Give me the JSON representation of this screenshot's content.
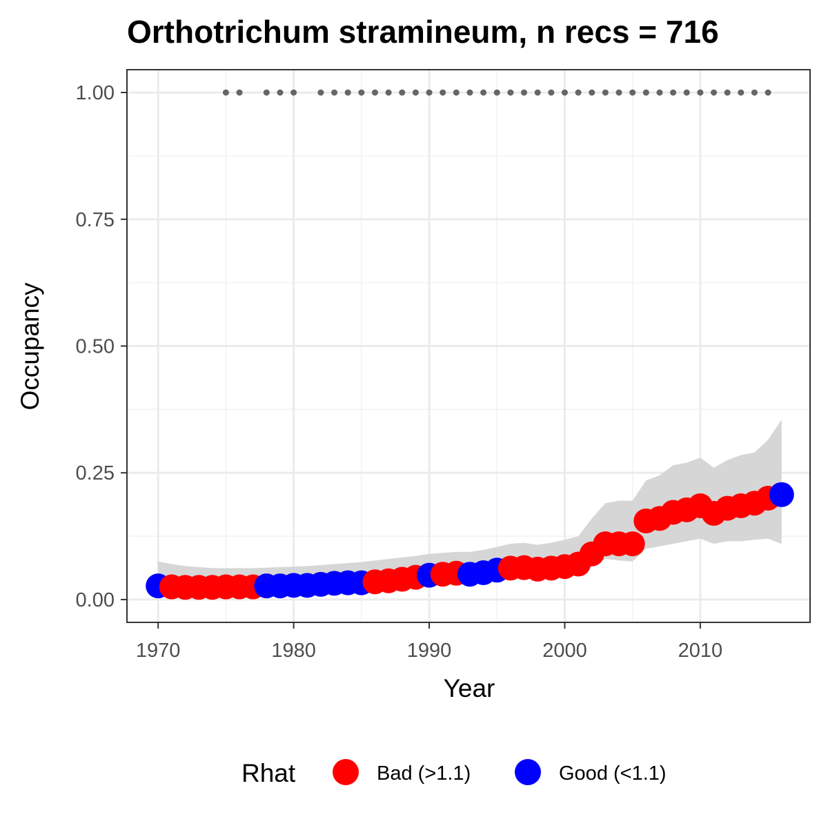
{
  "chart_data": {
    "type": "scatter",
    "title": "Orthotrichum stramineum, n recs = 716",
    "xlabel": "Year",
    "ylabel": "Occupancy",
    "xlim": [
      1967.7,
      2018.1
    ],
    "ylim": [
      -0.045,
      1.045
    ],
    "x_ticks": [
      1970,
      1980,
      1990,
      2000,
      2010
    ],
    "y_ticks": [
      0.0,
      0.25,
      0.5,
      0.75,
      1.0
    ],
    "x_tick_labels": [
      "1970",
      "1980",
      "1990",
      "2000",
      "2010"
    ],
    "y_tick_labels": [
      "0.00",
      "0.25",
      "0.50",
      "0.75",
      "1.00"
    ],
    "grid": true,
    "legend": {
      "title": "Rhat",
      "position": "bottom",
      "entries": [
        {
          "label": "Bad (>1.1)",
          "color": "#ff0000"
        },
        {
          "label": "Good (<1.1)",
          "color": "#0000ff"
        }
      ]
    },
    "colors": {
      "Bad": "#ff0000",
      "Good": "#0000ff",
      "ribbon": "#d6d6d6",
      "record_dots": "#666666"
    },
    "series": [
      {
        "x": [
          1970,
          1971,
          1972,
          1973,
          1974,
          1975,
          1976,
          1977,
          1978,
          1979,
          1980,
          1981,
          1982,
          1983,
          1984,
          1985,
          1986,
          1987,
          1988,
          1989,
          1990,
          1991,
          1992,
          1993,
          1994,
          1995,
          1996,
          1997,
          1998,
          1999,
          2000,
          2001,
          2002,
          2003,
          2004,
          2005,
          2006,
          2007,
          2008,
          2009,
          2010,
          2011,
          2012,
          2013,
          2014,
          2015,
          2016
        ],
        "y": [
          0.027,
          0.025,
          0.024,
          0.024,
          0.024,
          0.025,
          0.025,
          0.025,
          0.027,
          0.027,
          0.028,
          0.028,
          0.03,
          0.032,
          0.033,
          0.033,
          0.035,
          0.037,
          0.04,
          0.044,
          0.048,
          0.05,
          0.052,
          0.05,
          0.053,
          0.058,
          0.062,
          0.063,
          0.06,
          0.062,
          0.065,
          0.07,
          0.09,
          0.11,
          0.11,
          0.11,
          0.155,
          0.16,
          0.172,
          0.177,
          0.185,
          0.17,
          0.18,
          0.185,
          0.19,
          0.2,
          0.207
        ],
        "lower": [
          0.01,
          0.012,
          0.013,
          0.013,
          0.014,
          0.014,
          0.015,
          0.015,
          0.016,
          0.017,
          0.018,
          0.019,
          0.02,
          0.021,
          0.022,
          0.023,
          0.025,
          0.027,
          0.029,
          0.031,
          0.034,
          0.036,
          0.037,
          0.037,
          0.04,
          0.044,
          0.047,
          0.048,
          0.046,
          0.047,
          0.049,
          0.052,
          0.065,
          0.08,
          0.077,
          0.075,
          0.1,
          0.105,
          0.11,
          0.115,
          0.12,
          0.11,
          0.115,
          0.115,
          0.118,
          0.12,
          0.11
        ],
        "upper": [
          0.075,
          0.07,
          0.066,
          0.064,
          0.062,
          0.062,
          0.062,
          0.062,
          0.063,
          0.064,
          0.065,
          0.066,
          0.068,
          0.07,
          0.072,
          0.074,
          0.077,
          0.08,
          0.083,
          0.086,
          0.09,
          0.092,
          0.094,
          0.094,
          0.098,
          0.104,
          0.11,
          0.112,
          0.108,
          0.112,
          0.118,
          0.125,
          0.16,
          0.19,
          0.195,
          0.195,
          0.235,
          0.245,
          0.265,
          0.27,
          0.28,
          0.26,
          0.275,
          0.285,
          0.29,
          0.315,
          0.355
        ],
        "rhat": [
          "Good",
          "Bad",
          "Bad",
          "Bad",
          "Bad",
          "Bad",
          "Bad",
          "Bad",
          "Good",
          "Good",
          "Good",
          "Good",
          "Good",
          "Good",
          "Good",
          "Good",
          "Bad",
          "Bad",
          "Bad",
          "Bad",
          "Good",
          "Bad",
          "Bad",
          "Good",
          "Good",
          "Good",
          "Bad",
          "Bad",
          "Bad",
          "Bad",
          "Bad",
          "Bad",
          "Bad",
          "Bad",
          "Bad",
          "Bad",
          "Bad",
          "Bad",
          "Bad",
          "Bad",
          "Bad",
          "Bad",
          "Bad",
          "Bad",
          "Bad",
          "Bad",
          "Good"
        ]
      }
    ],
    "record_years": {
      "y": 1.0,
      "x": [
        1975,
        1976,
        1978,
        1979,
        1980,
        1982,
        1983,
        1984,
        1985,
        1986,
        1987,
        1988,
        1989,
        1990,
        1991,
        1992,
        1993,
        1994,
        1995,
        1996,
        1997,
        1998,
        1999,
        2000,
        2001,
        2002,
        2003,
        2004,
        2005,
        2006,
        2007,
        2008,
        2009,
        2010,
        2011,
        2012,
        2013,
        2014,
        2015
      ]
    }
  }
}
